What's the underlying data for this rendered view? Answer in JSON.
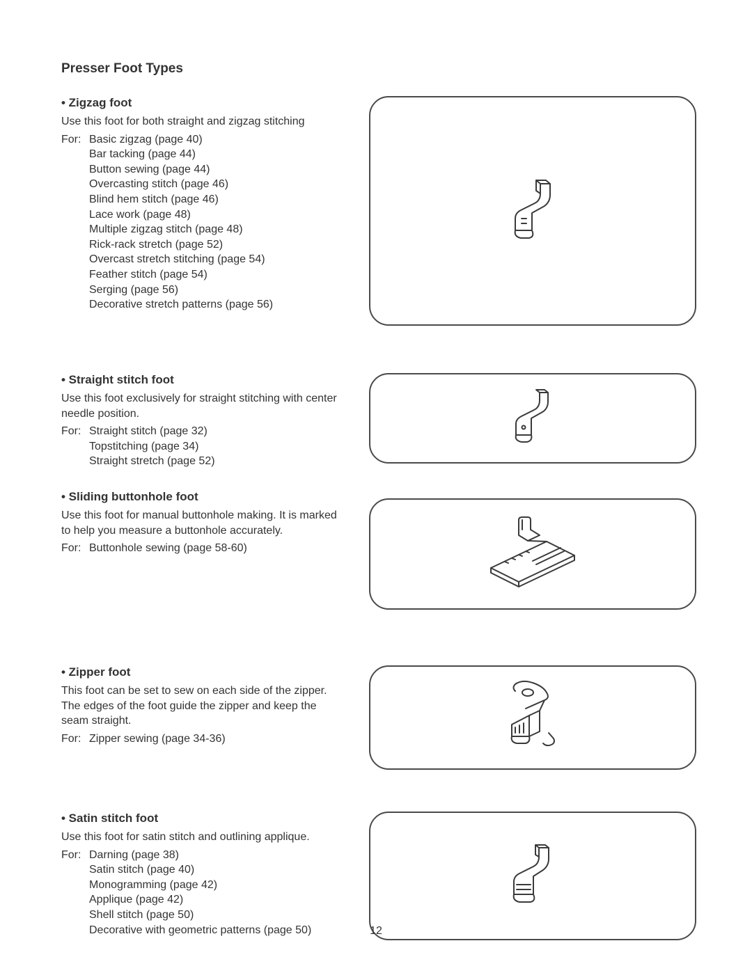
{
  "page_title": "Presser Foot Types",
  "page_number": "12",
  "sections": {
    "zigzag": {
      "heading": "• Zigzag foot",
      "intro": "Use this foot for both straight and zigzag stitching",
      "for_label": "For:",
      "first_use": "Basic zigzag (page 40)",
      "uses": [
        "Bar tacking (page 44)",
        "Button sewing (page 44)",
        "Overcasting stitch (page 46)",
        "Blind hem stitch (page 46)",
        "Lace work (page 48)",
        "Multiple zigzag stitch (page 48)",
        "Rick-rack stretch (page 52)",
        "Overcast stretch stitching (page 54)",
        "Feather stitch (page 54)",
        "Serging (page 56)",
        "Decorative stretch patterns (page 56)"
      ]
    },
    "straight": {
      "heading": "• Straight stitch foot",
      "intro": "Use this foot exclusively for straight stitching with center needle position.",
      "for_label": "For:",
      "first_use": "Straight stitch (page 32)",
      "uses": [
        "Topstitching (page 34)",
        "Straight stretch (page 52)"
      ]
    },
    "sliding": {
      "heading": "• Sliding buttonhole foot",
      "intro": "Use this foot for manual buttonhole making. It is marked to help you measure a buttonhole accurately.",
      "for_label": "For:",
      "first_use": "Buttonhole sewing (page 58-60)",
      "uses": []
    },
    "zipper": {
      "heading": "• Zipper foot",
      "intro": "This foot can be set to sew on each side of the zipper. The edges of the foot guide the zipper and keep the seam straight.",
      "for_label": "For:",
      "first_use": "Zipper sewing (page 34-36)",
      "uses": []
    },
    "satin": {
      "heading": "• Satin stitch foot",
      "intro": "Use this foot for satin stitch and outlining applique.",
      "for_label": "For:",
      "first_use": "Darning (page 38)",
      "uses": [
        "Satin stitch (page 40)",
        "Monogramming (page 42)",
        "Applique (page 42)",
        "Shell stitch (page 50)",
        "Decorative with geometric patterns (page 50)"
      ]
    }
  }
}
